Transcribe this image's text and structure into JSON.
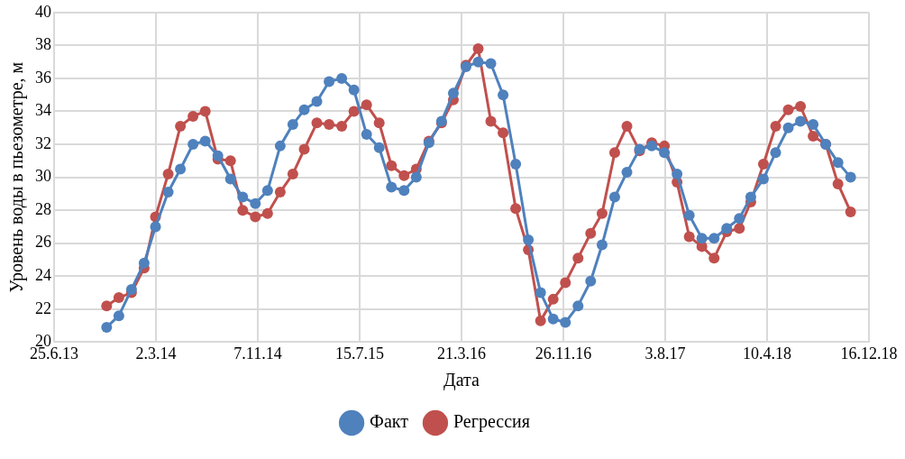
{
  "chart_data": {
    "type": "line",
    "xlabel": "Дата",
    "ylabel": "Уровень воды в пьезометре, м",
    "x": [
      "2013-11",
      "2013-12",
      "2014-01",
      "2014-02",
      "2014-03",
      "2014-04",
      "2014-05",
      "2014-06",
      "2014-07",
      "2014-08",
      "2014-09",
      "2014-10",
      "2014-11",
      "2014-12",
      "2015-01",
      "2015-02",
      "2015-03",
      "2015-04",
      "2015-05",
      "2015-06",
      "2015-07",
      "2015-08",
      "2015-09",
      "2015-10",
      "2015-11",
      "2015-12",
      "2016-01",
      "2016-02",
      "2016-03",
      "2016-04",
      "2016-05",
      "2016-06",
      "2016-07",
      "2016-08",
      "2016-09",
      "2016-10",
      "2016-11",
      "2016-12",
      "2017-01",
      "2017-02",
      "2017-03",
      "2017-04",
      "2017-05",
      "2017-06",
      "2017-07",
      "2017-08",
      "2017-09",
      "2017-10",
      "2017-11",
      "2017-12",
      "2018-01",
      "2018-02",
      "2018-03",
      "2018-04",
      "2018-05",
      "2018-06",
      "2018-07",
      "2018-08",
      "2018-09",
      "2018-10",
      "2018-11"
    ],
    "series": [
      {
        "name": "Факт",
        "color": "#4f81bd",
        "values": [
          20.9,
          21.6,
          23.2,
          24.8,
          27.0,
          29.1,
          30.5,
          32.0,
          32.2,
          31.3,
          29.9,
          28.8,
          28.4,
          29.2,
          31.9,
          33.2,
          34.1,
          34.6,
          35.8,
          36.0,
          35.3,
          32.6,
          31.8,
          29.4,
          29.2,
          30.0,
          32.1,
          33.4,
          35.1,
          36.7,
          37.0,
          36.9,
          35.0,
          30.8,
          26.2,
          23.0,
          21.4,
          21.2,
          22.2,
          23.7,
          25.9,
          28.8,
          30.3,
          31.7,
          31.9,
          31.5,
          30.2,
          27.7,
          26.3,
          26.3,
          26.9,
          27.5,
          28.8,
          29.9,
          31.5,
          33.0,
          33.4,
          33.2,
          32.0,
          30.9,
          30.0
        ]
      },
      {
        "name": "Регрессия",
        "color": "#c0504d",
        "values": [
          22.2,
          22.7,
          23.0,
          24.5,
          27.6,
          30.2,
          33.1,
          33.7,
          34.0,
          31.1,
          31.0,
          28.0,
          27.6,
          27.8,
          29.1,
          30.2,
          31.7,
          33.3,
          33.2,
          33.1,
          34.0,
          34.4,
          33.3,
          30.7,
          30.1,
          30.5,
          32.2,
          33.3,
          34.7,
          36.8,
          37.8,
          33.4,
          32.7,
          28.1,
          25.6,
          21.3,
          22.6,
          23.6,
          25.1,
          26.6,
          27.8,
          31.5,
          33.1,
          31.6,
          32.1,
          31.9,
          29.7,
          26.4,
          25.8,
          25.1,
          26.7,
          26.9,
          28.5,
          30.8,
          33.1,
          34.1,
          34.3,
          32.5,
          32.0,
          29.6,
          27.9
        ]
      }
    ],
    "xlim": [
      "2013-06-25",
      "2018-12-16"
    ],
    "xticks": [
      {
        "value": "2013-06-25",
        "label": "25.6.13"
      },
      {
        "value": "2014-03-02",
        "label": "2.3.14"
      },
      {
        "value": "2014-11-07",
        "label": "7.11.14"
      },
      {
        "value": "2015-07-15",
        "label": "15.7.15"
      },
      {
        "value": "2016-03-21",
        "label": "21.3.16"
      },
      {
        "value": "2016-11-26",
        "label": "26.11.16"
      },
      {
        "value": "2017-08-03",
        "label": "3.8.17"
      },
      {
        "value": "2018-04-10",
        "label": "10.4.18"
      },
      {
        "value": "2018-12-16",
        "label": "16.12.18"
      }
    ],
    "ylim": [
      20,
      40
    ],
    "yticks": [
      20,
      22,
      24,
      26,
      28,
      30,
      32,
      34,
      36,
      38,
      40
    ],
    "grid": true,
    "legend": "bottom",
    "marker": "circle",
    "line_style": "solid"
  }
}
